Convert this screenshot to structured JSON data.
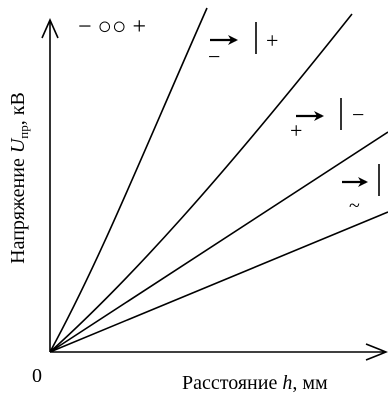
{
  "axes": {
    "y_label_main": "Напряжение ",
    "y_label_var": "U",
    "y_label_sub": "пр",
    "y_label_unit": ", кВ",
    "x_label_main": "Расстояние ",
    "x_label_var": "h",
    "x_label_unit": ", мм",
    "origin_label": "0"
  },
  "labels": {
    "sphere_pair": "− ○○ +",
    "plus_sign": "+",
    "minus_sign": "−",
    "minus_under": "−",
    "plus_under": "+",
    "tilde_under": "~"
  },
  "curves": [
    {
      "name": "sphere-gap",
      "shape": "concave",
      "end_fraction": 0.92
    },
    {
      "name": "point-plane-negative",
      "shape": "slightly-concave",
      "end_fraction": 0.8
    },
    {
      "name": "point-plane-positive",
      "shape": "linear",
      "end_fraction": 0.38
    },
    {
      "name": "point-plane-ac",
      "shape": "linear",
      "end_fraction": 0.14
    }
  ]
}
